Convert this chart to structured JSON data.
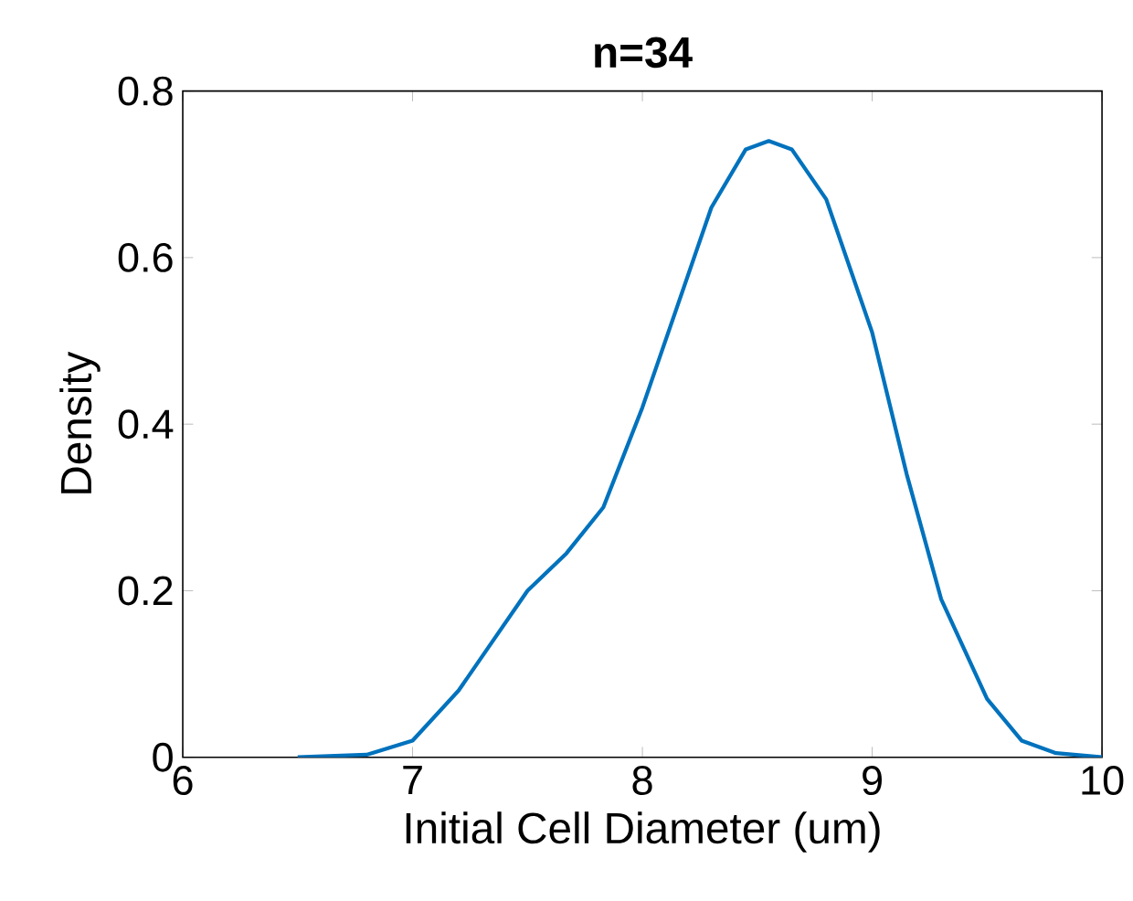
{
  "chart_data": {
    "type": "line",
    "title": "n=34",
    "xlabel": "Initial Cell Diameter (um)",
    "ylabel": "Density",
    "x": [
      6.5,
      6.8,
      7.0,
      7.2,
      7.35,
      7.5,
      7.67,
      7.83,
      8.0,
      8.15,
      8.3,
      8.45,
      8.55,
      8.65,
      8.8,
      9.0,
      9.15,
      9.3,
      9.5,
      9.65,
      9.8,
      10.0
    ],
    "series": [
      {
        "color": "#0072bd",
        "values": [
          0,
          0.003,
          0.02,
          0.08,
          0.14,
          0.2,
          0.245,
          0.3,
          0.42,
          0.54,
          0.66,
          0.73,
          0.74,
          0.73,
          0.67,
          0.51,
          0.34,
          0.19,
          0.07,
          0.02,
          0.005,
          0
        ]
      }
    ],
    "xlim": [
      6,
      10
    ],
    "xticks": [
      6,
      7,
      8,
      9,
      10
    ],
    "ylim": [
      0,
      0.8
    ],
    "yticks": [
      0,
      0.2,
      0.4,
      0.6,
      0.8
    ],
    "grid": false,
    "legend": false,
    "marker": "none",
    "line_style": "solid"
  }
}
